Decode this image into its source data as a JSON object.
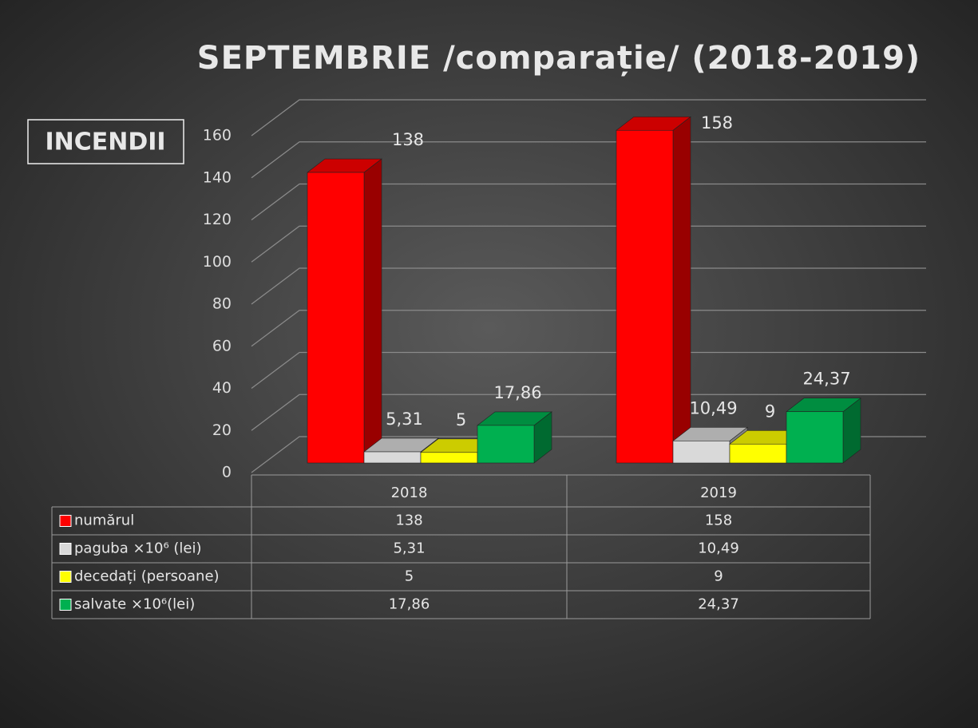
{
  "chart_data": {
    "type": "bar",
    "title": "SEPTEMBRIE /comparație/ (2018-2019)",
    "annotation": "INCENDII",
    "categories": [
      "2018",
      "2019"
    ],
    "series": [
      {
        "name": "numărul",
        "color": "#ff0000",
        "values": [
          138,
          158
        ]
      },
      {
        "name": "paguba ×10⁶ (lei)",
        "color": "#d9d9d9",
        "values": [
          5.31,
          10.49
        ],
        "value_labels": [
          "5,31",
          "10,49"
        ]
      },
      {
        "name": "decedați (persoane)",
        "color": "#ffff00",
        "values": [
          5,
          9
        ]
      },
      {
        "name": "salvate ×10⁶(lei)",
        "color": "#00b050",
        "values": [
          17.86,
          24.37
        ],
        "value_labels": [
          "17,86",
          "24,37"
        ]
      }
    ],
    "ylim": [
      0,
      160
    ],
    "yticks": [
      0,
      20,
      40,
      60,
      80,
      100,
      120,
      140,
      160
    ],
    "grid": true,
    "legend": "table"
  }
}
